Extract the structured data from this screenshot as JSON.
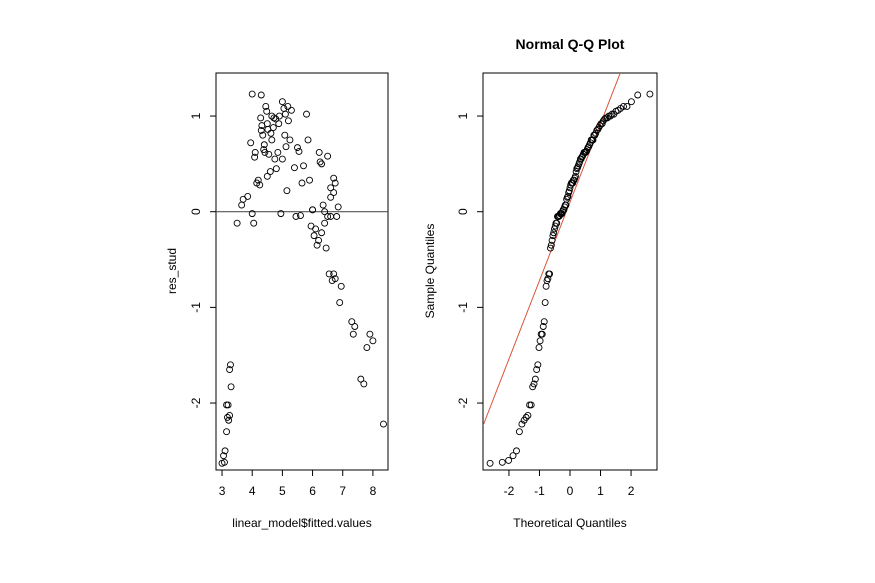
{
  "chart_data": [
    {
      "type": "scatter",
      "title": "",
      "xlabel": "linear_model$fitted.values",
      "ylabel": "res_stud",
      "xlim": [
        2.8,
        8.5
      ],
      "ylim": [
        -2.7,
        1.45
      ],
      "xticks": [
        "3",
        "4",
        "5",
        "6",
        "7",
        "8"
      ],
      "yticks": [
        "-2",
        "-1",
        "0",
        "1"
      ],
      "hline": 0,
      "line_color": "#555555",
      "point_color": "#000000",
      "points": [
        [
          3.0,
          -2.63
        ],
        [
          3.05,
          -2.55
        ],
        [
          3.1,
          -2.5
        ],
        [
          3.08,
          -2.62
        ],
        [
          3.15,
          -2.3
        ],
        [
          3.18,
          -2.15
        ],
        [
          3.2,
          -2.02
        ],
        [
          3.22,
          -2.18
        ],
        [
          3.25,
          -1.65
        ],
        [
          3.28,
          -1.6
        ],
        [
          3.3,
          -1.83
        ],
        [
          3.15,
          -2.02
        ],
        [
          3.25,
          -2.13
        ],
        [
          3.5,
          -0.12
        ],
        [
          3.65,
          0.07
        ],
        [
          3.7,
          0.13
        ],
        [
          3.85,
          0.16
        ],
        [
          3.95,
          0.72
        ],
        [
          4.0,
          -0.02
        ],
        [
          4.05,
          -0.12
        ],
        [
          4.08,
          0.57
        ],
        [
          4.1,
          0.62
        ],
        [
          4.15,
          0.3
        ],
        [
          4.2,
          0.33
        ],
        [
          4.25,
          0.28
        ],
        [
          4.28,
          0.98
        ],
        [
          4.3,
          0.85
        ],
        [
          4.32,
          0.9
        ],
        [
          4.35,
          0.8
        ],
        [
          4.38,
          0.65
        ],
        [
          4.4,
          0.7
        ],
        [
          4.42,
          0.62
        ],
        [
          4.45,
          1.1
        ],
        [
          4.48,
          1.05
        ],
        [
          4.5,
          0.92
        ],
        [
          4.52,
          0.86
        ],
        [
          4.55,
          0.6
        ],
        [
          4.6,
          0.42
        ],
        [
          4.62,
          0.82
        ],
        [
          4.65,
          0.75
        ],
        [
          4.7,
          0.88
        ],
        [
          4.72,
          0.98
        ],
        [
          4.75,
          0.55
        ],
        [
          4.78,
          0.97
        ],
        [
          4.8,
          0.45
        ],
        [
          4.85,
          0.62
        ],
        [
          4.88,
          0.92
        ],
        [
          4.9,
          1.0
        ],
        [
          4.95,
          -0.02
        ],
        [
          5.0,
          1.15
        ],
        [
          5.05,
          1.08
        ],
        [
          5.08,
          0.8
        ],
        [
          5.1,
          1.02
        ],
        [
          5.12,
          0.68
        ],
        [
          5.15,
          0.22
        ],
        [
          5.18,
          1.1
        ],
        [
          5.2,
          0.95
        ],
        [
          5.25,
          0.75
        ],
        [
          5.3,
          1.06
        ],
        [
          5.4,
          0.46
        ],
        [
          5.45,
          -0.05
        ],
        [
          5.5,
          0.67
        ],
        [
          5.55,
          0.63
        ],
        [
          5.6,
          -0.04
        ],
        [
          5.65,
          0.3
        ],
        [
          5.7,
          0.48
        ],
        [
          5.8,
          1.02
        ],
        [
          5.85,
          0.75
        ],
        [
          5.9,
          0.33
        ],
        [
          5.95,
          -0.15
        ],
        [
          6.0,
          0.02
        ],
        [
          6.05,
          -0.25
        ],
        [
          6.1,
          -0.18
        ],
        [
          6.15,
          -0.35
        ],
        [
          6.2,
          -0.3
        ],
        [
          6.22,
          0.62
        ],
        [
          6.25,
          0.52
        ],
        [
          6.3,
          -0.22
        ],
        [
          6.35,
          0.07
        ],
        [
          6.4,
          -0.12
        ],
        [
          6.45,
          -0.38
        ],
        [
          6.5,
          0.58
        ],
        [
          6.55,
          -0.65
        ],
        [
          6.6,
          0.25
        ],
        [
          6.65,
          -0.72
        ],
        [
          6.7,
          0.35
        ],
        [
          6.75,
          -0.7
        ],
        [
          6.8,
          -0.05
        ],
        [
          6.85,
          0.05
        ],
        [
          6.9,
          -0.95
        ],
        [
          6.95,
          -0.78
        ],
        [
          6.6,
          -0.05
        ],
        [
          6.7,
          -0.65
        ],
        [
          6.75,
          0.3
        ],
        [
          7.3,
          -1.15
        ],
        [
          7.35,
          -1.28
        ],
        [
          7.4,
          -1.2
        ],
        [
          7.6,
          -1.75
        ],
        [
          7.7,
          -1.8
        ],
        [
          7.8,
          -1.42
        ],
        [
          7.9,
          -1.28
        ],
        [
          8.0,
          -1.35
        ],
        [
          8.35,
          -2.22
        ],
        [
          6.3,
          0.5
        ],
        [
          6.4,
          0.0
        ],
        [
          6.5,
          -0.05
        ],
        [
          6.6,
          0.15
        ],
        [
          6.7,
          0.2
        ],
        [
          4.5,
          0.37
        ],
        [
          5.0,
          0.55
        ],
        [
          6.0,
          0.02
        ],
        [
          4.65,
          1.0
        ],
        [
          4.0,
          1.23
        ],
        [
          4.3,
          1.22
        ]
      ]
    },
    {
      "type": "scatter",
      "title": "Normal Q-Q Plot",
      "xlabel": "Theoretical Quantiles",
      "ylabel": "Sample Quantiles",
      "xlim": [
        -2.85,
        2.85
      ],
      "ylim": [
        -2.7,
        1.45
      ],
      "xticks": [
        "-2",
        "-1",
        "0",
        "1",
        "2"
      ],
      "yticks": [
        "-2",
        "-1",
        "0",
        "1"
      ],
      "qq_line": {
        "intercept": 0.1,
        "slope": 0.82
      },
      "line_color": "#d9553b",
      "point_color": "#000000",
      "sample_values": [
        -2.63,
        -2.62,
        -2.6,
        -2.55,
        -2.5,
        -2.3,
        -2.22,
        -2.18,
        -2.15,
        -2.13,
        -2.02,
        -2.02,
        -1.83,
        -1.8,
        -1.75,
        -1.65,
        -1.6,
        -1.42,
        -1.35,
        -1.28,
        -1.28,
        -1.2,
        -1.15,
        -0.95,
        -0.78,
        -0.72,
        -0.7,
        -0.65,
        -0.65,
        -0.38,
        -0.35,
        -0.3,
        -0.25,
        -0.22,
        -0.18,
        -0.15,
        -0.12,
        -0.12,
        -0.05,
        -0.05,
        -0.05,
        -0.04,
        -0.02,
        -0.02,
        -0.02,
        0.0,
        0.02,
        0.02,
        0.05,
        0.07,
        0.07,
        0.13,
        0.15,
        0.16,
        0.2,
        0.22,
        0.25,
        0.28,
        0.3,
        0.3,
        0.3,
        0.33,
        0.33,
        0.35,
        0.37,
        0.42,
        0.45,
        0.46,
        0.48,
        0.5,
        0.52,
        0.55,
        0.55,
        0.57,
        0.58,
        0.6,
        0.62,
        0.62,
        0.62,
        0.63,
        0.65,
        0.67,
        0.68,
        0.7,
        0.72,
        0.75,
        0.75,
        0.75,
        0.8,
        0.8,
        0.82,
        0.85,
        0.86,
        0.88,
        0.9,
        0.92,
        0.92,
        0.95,
        0.97,
        0.98,
        0.98,
        1.0,
        1.0,
        1.02,
        1.02,
        1.05,
        1.06,
        1.08,
        1.1,
        1.1,
        1.15,
        1.22,
        1.23
      ]
    }
  ]
}
